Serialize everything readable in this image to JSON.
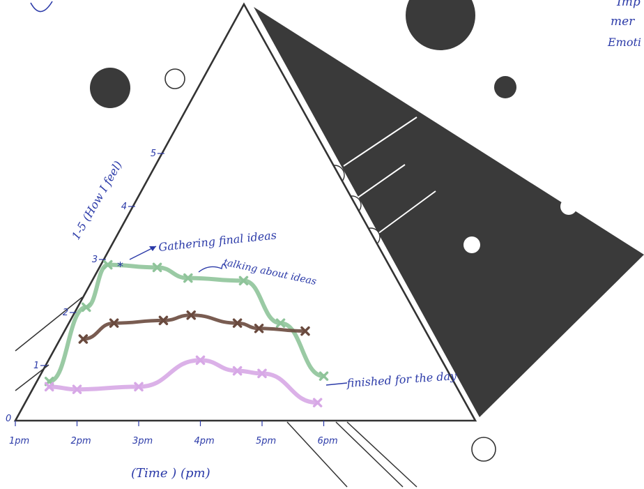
{
  "page": {
    "corner_notes": [
      "Imp",
      "mer",
      "Emoti"
    ]
  },
  "chart_data": {
    "type": "line",
    "title": "",
    "xlabel": "(Time ) (pm)",
    "ylabel": "1-5 (How I feel)",
    "x_ticks": [
      "1pm",
      "2pm",
      "3pm",
      "4pm",
      "5pm",
      "6pm"
    ],
    "y_ticks": [
      "0",
      "1",
      "2",
      "3",
      "4",
      "5"
    ],
    "xlim": [
      1,
      6
    ],
    "ylim": [
      0,
      5
    ],
    "grid": false,
    "series": [
      {
        "color": "#8fc49a",
        "points": [
          [
            1.55,
            0.7
          ],
          [
            2.15,
            2.1
          ],
          [
            2.5,
            2.9
          ],
          [
            3.3,
            2.85
          ],
          [
            3.8,
            2.65
          ],
          [
            4.7,
            2.6
          ],
          [
            5.3,
            1.8
          ],
          [
            6.0,
            0.8
          ]
        ]
      },
      {
        "color": "#6a4a3e",
        "points": [
          [
            2.1,
            1.5
          ],
          [
            2.6,
            1.8
          ],
          [
            3.4,
            1.85
          ],
          [
            3.85,
            1.95
          ],
          [
            4.6,
            1.8
          ],
          [
            4.95,
            1.7
          ],
          [
            5.7,
            1.65
          ]
        ]
      },
      {
        "color": "#d7a8e6",
        "points": [
          [
            1.55,
            0.6
          ],
          [
            2.0,
            0.55
          ],
          [
            3.0,
            0.6
          ],
          [
            4.0,
            1.1
          ],
          [
            4.6,
            0.9
          ],
          [
            5.0,
            0.85
          ],
          [
            5.9,
            0.3
          ]
        ]
      }
    ],
    "annotations": [
      {
        "text": "Gathering final ideas"
      },
      {
        "text": "talking about ideas"
      },
      {
        "text": "finished for the day"
      }
    ]
  }
}
